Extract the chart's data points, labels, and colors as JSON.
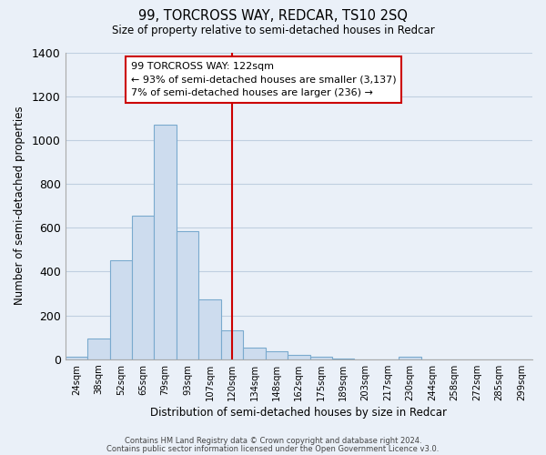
{
  "title": "99, TORCROSS WAY, REDCAR, TS10 2SQ",
  "subtitle": "Size of property relative to semi-detached houses in Redcar",
  "xlabel": "Distribution of semi-detached houses by size in Redcar",
  "ylabel": "Number of semi-detached properties",
  "bin_labels": [
    "24sqm",
    "38sqm",
    "52sqm",
    "65sqm",
    "79sqm",
    "93sqm",
    "107sqm",
    "120sqm",
    "134sqm",
    "148sqm",
    "162sqm",
    "175sqm",
    "189sqm",
    "203sqm",
    "217sqm",
    "230sqm",
    "244sqm",
    "258sqm",
    "272sqm",
    "285sqm",
    "299sqm"
  ],
  "bar_heights": [
    10,
    95,
    450,
    655,
    1070,
    585,
    275,
    130,
    55,
    38,
    20,
    10,
    5,
    0,
    0,
    10,
    0,
    0,
    0,
    0,
    0
  ],
  "bar_color": "#cddcee",
  "bar_edge_color": "#7aaace",
  "property_line_color": "#cc0000",
  "property_line_index": 7,
  "ylim": [
    0,
    1400
  ],
  "yticks": [
    0,
    200,
    400,
    600,
    800,
    1000,
    1200,
    1400
  ],
  "annotation_title": "99 TORCROSS WAY: 122sqm",
  "annotation_line1": "← 93% of semi-detached houses are smaller (3,137)",
  "annotation_line2": "7% of semi-detached houses are larger (236) →",
  "annotation_box_color": "#ffffff",
  "annotation_box_edge": "#cc0000",
  "footer_line1": "Contains HM Land Registry data © Crown copyright and database right 2024.",
  "footer_line2": "Contains public sector information licensed under the Open Government Licence v3.0.",
  "background_color": "#eaf0f8",
  "plot_bg_color": "#eaf0f8",
  "grid_color": "#c0cfe0"
}
